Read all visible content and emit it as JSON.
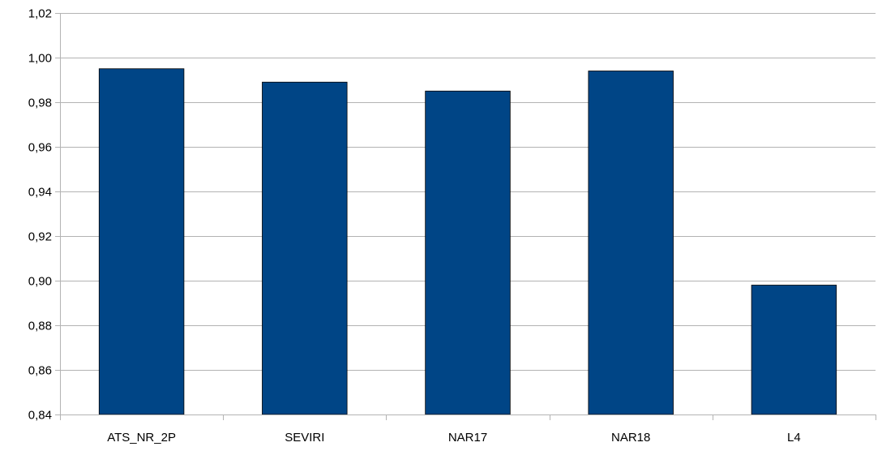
{
  "chart_data": {
    "type": "bar",
    "categories": [
      "ATS_NR_2P",
      "SEVIRI",
      "NAR17",
      "NAR18",
      "L4"
    ],
    "values": [
      0.995,
      0.989,
      0.985,
      0.994,
      0.898
    ],
    "ylim": [
      0.84,
      1.02
    ],
    "yticks": [
      "0,84",
      "0,86",
      "0,88",
      "0,90",
      "0,92",
      "0,94",
      "0,96",
      "0,98",
      "1,00",
      "1,02"
    ],
    "ytick_values": [
      0.84,
      0.86,
      0.88,
      0.9,
      0.92,
      0.94,
      0.96,
      0.98,
      1.0,
      1.02
    ],
    "grid": true,
    "legend": "none",
    "bar_color": "#004586",
    "title": "",
    "xlabel": "",
    "ylabel": ""
  }
}
